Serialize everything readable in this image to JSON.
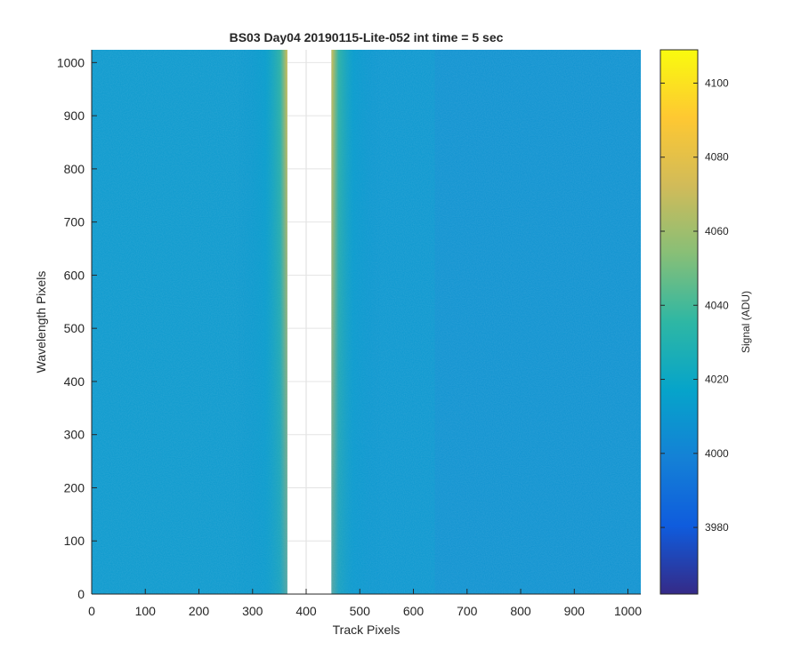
{
  "chart_data": {
    "type": "heatmap",
    "title": "BS03 Day04 20190115-Lite-052 int time = 5 sec",
    "xlabel": "Track Pixels",
    "ylabel": "Wavelength Pixels",
    "xlim": [
      0,
      1024
    ],
    "ylim": [
      0,
      1024
    ],
    "xticks": [
      0,
      100,
      200,
      300,
      400,
      500,
      600,
      700,
      800,
      900,
      1000
    ],
    "yticks": [
      0,
      100,
      200,
      300,
      400,
      500,
      600,
      700,
      800,
      900,
      1000
    ],
    "grid": true,
    "masked_x_range": [
      365,
      447
    ],
    "background_level": 4008,
    "edge_levels": {
      "left_edge_x": 365,
      "right_edge_x": 447,
      "peak_value_top": 4078,
      "peak_value_bottom": 4022
    },
    "colorbar": {
      "label": "Signal (ADU)",
      "range": [
        3962,
        4109
      ],
      "ticks": [
        3980,
        4000,
        4020,
        4040,
        4060,
        4080,
        4100
      ],
      "colormap": "parula",
      "colors": [
        "#352a87",
        "#0f5cdd",
        "#1481d6",
        "#06a4ca",
        "#2eb7a4",
        "#87bf77",
        "#d1bb59",
        "#fec832",
        "#f9fb0e"
      ]
    }
  }
}
